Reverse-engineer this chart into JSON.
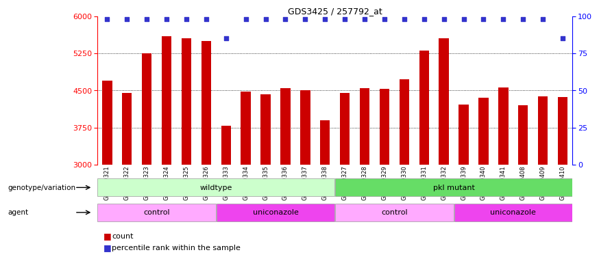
{
  "title": "GDS3425 / 257792_at",
  "samples": [
    "GSM299321",
    "GSM299322",
    "GSM299323",
    "GSM299324",
    "GSM299325",
    "GSM299326",
    "GSM299333",
    "GSM299334",
    "GSM299335",
    "GSM299336",
    "GSM299337",
    "GSM299338",
    "GSM299327",
    "GSM299328",
    "GSM299329",
    "GSM299330",
    "GSM299331",
    "GSM299332",
    "GSM299339",
    "GSM299340",
    "GSM299341",
    "GSM299408",
    "GSM299409",
    "GSM299410"
  ],
  "counts": [
    4700,
    4450,
    5250,
    5600,
    5550,
    5500,
    3780,
    4480,
    4420,
    4550,
    4500,
    3900,
    4450,
    4550,
    4530,
    4720,
    5300,
    5550,
    4220,
    4350,
    4560,
    4200,
    4380,
    4370
  ],
  "percentile_ranks": [
    98,
    98,
    98,
    98,
    98,
    98,
    85,
    98,
    98,
    98,
    98,
    98,
    98,
    98,
    98,
    98,
    98,
    98,
    98,
    98,
    98,
    98,
    98,
    85
  ],
  "bar_color": "#cc0000",
  "dot_color": "#3333cc",
  "ylim_left": [
    3000,
    6000
  ],
  "ylim_right": [
    0,
    100
  ],
  "yticks_left": [
    3000,
    3750,
    4500,
    5250,
    6000
  ],
  "yticks_right": [
    0,
    25,
    50,
    75,
    100
  ],
  "genotype_groups": [
    {
      "label": "wildtype",
      "start": 0,
      "end": 12,
      "color": "#ccffcc"
    },
    {
      "label": "pkl mutant",
      "start": 12,
      "end": 24,
      "color": "#66dd66"
    }
  ],
  "agent_groups": [
    {
      "label": "control",
      "start": 0,
      "end": 6,
      "color": "#ffaaff"
    },
    {
      "label": "uniconazole",
      "start": 6,
      "end": 12,
      "color": "#ee44ee"
    },
    {
      "label": "control",
      "start": 12,
      "end": 18,
      "color": "#ffaaff"
    },
    {
      "label": "uniconazole",
      "start": 18,
      "end": 24,
      "color": "#ee44ee"
    }
  ],
  "legend_count_color": "#cc0000",
  "legend_dot_color": "#3333cc",
  "background_color": "#ffffff",
  "grid_color": "#000000"
}
